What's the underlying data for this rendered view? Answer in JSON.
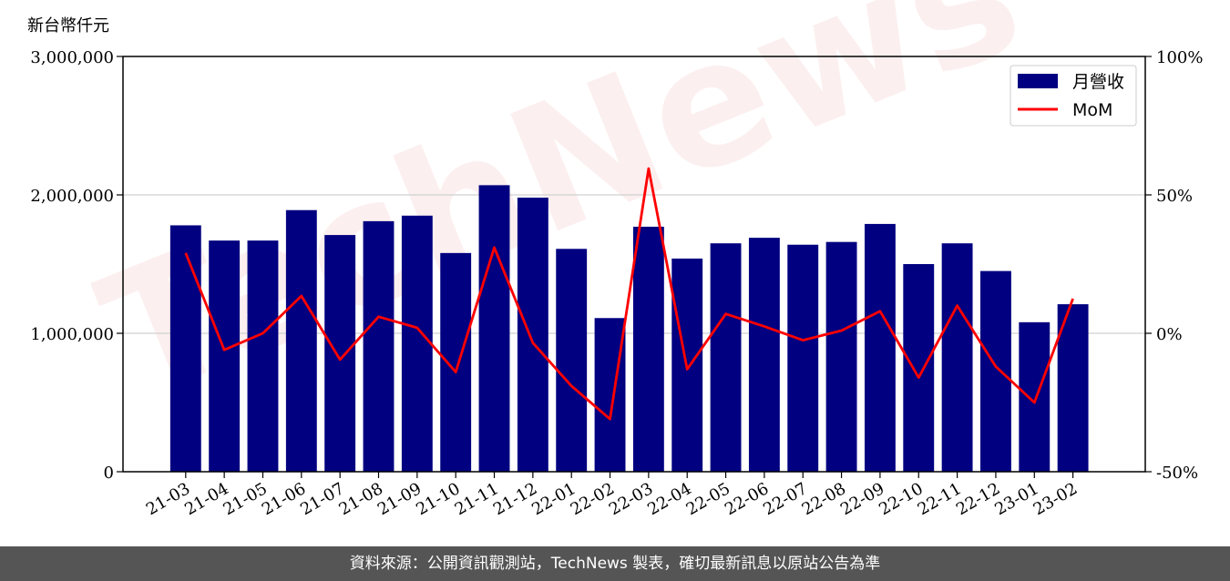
{
  "chart_data": {
    "type": "bar",
    "title": "",
    "unit_label": "新台幣仟元",
    "categories": [
      "21-03",
      "21-04",
      "21-05",
      "21-06",
      "21-07",
      "21-08",
      "21-09",
      "21-10",
      "21-11",
      "21-12",
      "22-01",
      "22-02",
      "22-03",
      "22-04",
      "22-05",
      "22-06",
      "22-07",
      "22-08",
      "22-09",
      "22-10",
      "22-11",
      "22-12",
      "23-01",
      "23-02"
    ],
    "series": [
      {
        "name": "月營收",
        "type": "bar",
        "axis": "left",
        "color": "#000080",
        "values": [
          1780000,
          1670000,
          1670000,
          1890000,
          1710000,
          1810000,
          1850000,
          1580000,
          2070000,
          1980000,
          1610000,
          1110000,
          1770000,
          1540000,
          1650000,
          1690000,
          1640000,
          1660000,
          1790000,
          1500000,
          1650000,
          1450000,
          1080000,
          1210000
        ]
      },
      {
        "name": "MoM",
        "type": "line",
        "axis": "right",
        "color": "#ff0000",
        "values": [
          29,
          -6,
          0,
          13.5,
          -9.5,
          6,
          2,
          -14,
          31,
          -3.5,
          -19,
          -31,
          59.5,
          -13,
          7,
          2.5,
          -2.5,
          1,
          8,
          -16,
          10,
          -12,
          -25,
          12.5
        ]
      }
    ],
    "y_left": {
      "min": 0,
      "max": 3000000,
      "ticks": [
        0,
        1000000,
        2000000,
        3000000
      ],
      "tick_labels": [
        "0",
        "1,000,000",
        "2,000,000",
        "3,000,000"
      ]
    },
    "y_right": {
      "min": -50,
      "max": 100,
      "ticks": [
        -50,
        0,
        50,
        100
      ],
      "tick_labels": [
        "-50%",
        "0%",
        "50%",
        "100%"
      ]
    },
    "grid": "horizontal",
    "legend_position": "top-right"
  },
  "watermark": "TechNews",
  "footer": {
    "source_text": "資料來源：公開資訊觀測站，TechNews 製表，確切最新訊息以原站公告為準"
  }
}
